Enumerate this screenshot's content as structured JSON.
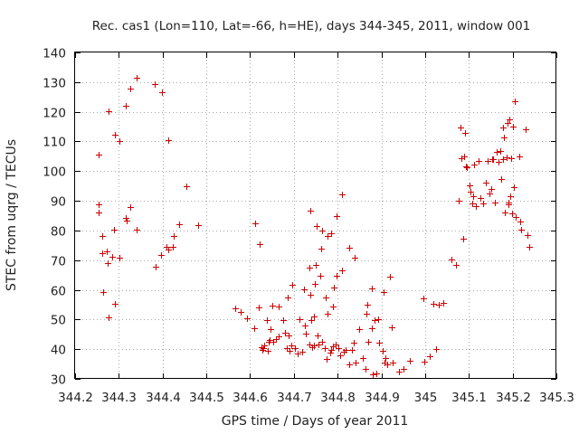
{
  "chart_data": {
    "type": "scatter",
    "title": "Rec. cas1 (Lon=110, Lat=-66, h=HE), days 344-345, 2011, window 001",
    "xlabel": "GPS time / Days of year 2011",
    "ylabel": "STEC from uqrg / TECUs",
    "xlim": [
      344.2,
      345.3
    ],
    "ylim": [
      30,
      140
    ],
    "grid": true,
    "legend": "none",
    "marker": "plus",
    "marker_color": "#cc0000",
    "x_ticks": [
      344.2,
      344.3,
      344.4,
      344.5,
      344.6,
      344.7,
      344.8,
      344.9,
      345.0,
      345.1,
      345.2,
      345.3
    ],
    "x_tick_labels": [
      "344.2",
      "344.3",
      "344.4",
      "344.5",
      "344.6",
      "344.7",
      "344.8",
      "344.9",
      "345",
      "345.1",
      "345.2",
      "345.3"
    ],
    "y_ticks": [
      30,
      40,
      50,
      60,
      70,
      80,
      90,
      100,
      110,
      120,
      130,
      140
    ],
    "y_tick_labels": [
      "30",
      "40",
      "50",
      "60",
      "70",
      "80",
      "90",
      "100",
      "110",
      "120",
      "130",
      "140"
    ],
    "series": [
      {
        "points": [
          [
            344.253,
            105.7
          ],
          [
            344.253,
            88.7
          ],
          [
            344.253,
            86.0
          ],
          [
            344.262,
            78.2
          ],
          [
            344.262,
            72.4
          ],
          [
            344.264,
            59.3
          ],
          [
            344.273,
            72.9
          ],
          [
            344.275,
            69.0
          ],
          [
            344.276,
            120.3
          ],
          [
            344.276,
            50.7
          ],
          [
            344.285,
            71.2
          ],
          [
            344.289,
            80.3
          ],
          [
            344.291,
            112.3
          ],
          [
            344.291,
            55.2
          ],
          [
            344.302,
            110.0
          ],
          [
            344.302,
            70.7
          ],
          [
            344.315,
            121.9
          ],
          [
            344.315,
            84.2
          ],
          [
            344.317,
            83.4
          ],
          [
            344.326,
            127.9
          ],
          [
            344.327,
            88.0
          ],
          [
            344.34,
            131.5
          ],
          [
            344.34,
            80.4
          ],
          [
            344.382,
            129.4
          ],
          [
            344.384,
            67.7
          ],
          [
            344.396,
            71.6
          ],
          [
            344.398,
            126.7
          ],
          [
            344.408,
            74.5
          ],
          [
            344.412,
            110.5
          ],
          [
            344.413,
            73.5
          ],
          [
            344.424,
            74.4
          ],
          [
            344.426,
            78.0
          ],
          [
            344.437,
            82.2
          ],
          [
            344.455,
            94.8
          ],
          [
            344.482,
            81.8
          ],
          [
            344.566,
            53.8
          ],
          [
            344.579,
            52.4
          ],
          [
            344.593,
            50.3
          ],
          [
            344.609,
            47.2
          ],
          [
            344.611,
            82.4
          ],
          [
            344.619,
            54.1
          ],
          [
            344.621,
            75.3
          ],
          [
            344.625,
            40.7
          ],
          [
            344.628,
            39.7
          ],
          [
            344.63,
            40.3
          ],
          [
            344.632,
            41.3
          ],
          [
            344.638,
            49.8
          ],
          [
            344.641,
            39.5
          ],
          [
            344.642,
            42.5
          ],
          [
            344.645,
            43.0
          ],
          [
            344.647,
            46.9
          ],
          [
            344.65,
            54.8
          ],
          [
            344.652,
            42.6
          ],
          [
            344.66,
            43.5
          ],
          [
            344.665,
            54.3
          ],
          [
            344.666,
            44.3
          ],
          [
            344.675,
            49.7
          ],
          [
            344.679,
            45.5
          ],
          [
            344.684,
            40.5
          ],
          [
            344.685,
            57.5
          ],
          [
            344.689,
            44.5
          ],
          [
            344.691,
            39.5
          ],
          [
            344.695,
            41.3
          ],
          [
            344.697,
            61.8
          ],
          [
            344.702,
            40.3
          ],
          [
            344.708,
            38.5
          ],
          [
            344.712,
            50.1
          ],
          [
            344.719,
            39.0
          ],
          [
            344.723,
            60.3
          ],
          [
            344.726,
            47.9
          ],
          [
            344.727,
            45.2
          ],
          [
            344.735,
            41.5
          ],
          [
            344.735,
            67.5
          ],
          [
            344.737,
            58.2
          ],
          [
            344.738,
            86.7
          ],
          [
            344.739,
            49.8
          ],
          [
            344.742,
            40.6
          ],
          [
            344.745,
            51.1
          ],
          [
            344.746,
            41.2
          ],
          [
            344.747,
            62.0
          ],
          [
            344.75,
            68.4
          ],
          [
            344.753,
            81.5
          ],
          [
            344.755,
            44.6
          ],
          [
            344.757,
            41.6
          ],
          [
            344.76,
            64.8
          ],
          [
            344.762,
            73.9
          ],
          [
            344.764,
            42.6
          ],
          [
            344.765,
            79.9
          ],
          [
            344.771,
            40.4
          ],
          [
            344.772,
            57.3
          ],
          [
            344.774,
            36.7
          ],
          [
            344.776,
            78.2
          ],
          [
            344.777,
            52.0
          ],
          [
            344.783,
            38.9
          ],
          [
            344.785,
            39.6
          ],
          [
            344.786,
            79.1
          ],
          [
            344.789,
            54.3
          ],
          [
            344.79,
            40.9
          ],
          [
            344.792,
            60.8
          ],
          [
            344.795,
            41.5
          ],
          [
            344.797,
            85.0
          ],
          [
            344.798,
            64.8
          ],
          [
            344.801,
            40.5
          ],
          [
            344.805,
            38.0
          ],
          [
            344.809,
            92.3
          ],
          [
            344.81,
            66.5
          ],
          [
            344.814,
            39.2
          ],
          [
            344.819,
            39.6
          ],
          [
            344.826,
            74.3
          ],
          [
            344.827,
            34.9
          ],
          [
            344.832,
            39.8
          ],
          [
            344.836,
            42.1
          ],
          [
            344.838,
            70.8
          ],
          [
            344.84,
            35.4
          ],
          [
            344.849,
            46.8
          ],
          [
            344.857,
            37.0
          ],
          [
            344.863,
            33.5
          ],
          [
            344.866,
            51.8
          ],
          [
            344.868,
            55.1
          ],
          [
            344.87,
            42.6
          ],
          [
            344.878,
            47.1
          ],
          [
            344.879,
            60.4
          ],
          [
            344.88,
            31.6
          ],
          [
            344.885,
            49.8
          ],
          [
            344.889,
            31.9
          ],
          [
            344.892,
            50.0
          ],
          [
            344.894,
            42.2
          ],
          [
            344.902,
            39.4
          ],
          [
            344.905,
            59.2
          ],
          [
            344.907,
            35.6
          ],
          [
            344.91,
            36.9
          ],
          [
            344.914,
            34.9
          ],
          [
            344.92,
            64.3
          ],
          [
            344.923,
            47.3
          ],
          [
            344.925,
            35.4
          ],
          [
            344.94,
            32.3
          ],
          [
            344.95,
            33.5
          ],
          [
            344.966,
            36.2
          ],
          [
            344.997,
            57.2
          ],
          [
            344.998,
            35.8
          ],
          [
            345.01,
            37.6
          ],
          [
            345.018,
            55.2
          ],
          [
            345.025,
            40.1
          ],
          [
            345.032,
            55.1
          ],
          [
            345.041,
            55.5
          ],
          [
            345.06,
            70.2
          ],
          [
            345.07,
            68.4
          ],
          [
            345.077,
            90.0
          ],
          [
            345.081,
            114.7
          ],
          [
            345.082,
            104.2
          ],
          [
            345.088,
            77.2
          ],
          [
            345.09,
            105.0
          ],
          [
            345.091,
            112.9
          ],
          [
            345.093,
            101.6
          ],
          [
            345.096,
            101.2
          ],
          [
            345.101,
            95.2
          ],
          [
            345.104,
            93.1
          ],
          [
            345.108,
            89.2
          ],
          [
            345.109,
            91.6
          ],
          [
            345.111,
            102.1
          ],
          [
            345.117,
            88.2
          ],
          [
            345.122,
            103.3
          ],
          [
            345.127,
            91.0
          ],
          [
            345.133,
            89.0
          ],
          [
            345.139,
            96.1
          ],
          [
            345.142,
            103.5
          ],
          [
            345.148,
            92.4
          ],
          [
            345.151,
            94.0
          ],
          [
            345.154,
            103.9
          ],
          [
            345.156,
            104.0
          ],
          [
            345.16,
            89.4
          ],
          [
            345.164,
            106.6
          ],
          [
            345.167,
            103.1
          ],
          [
            345.171,
            106.9
          ],
          [
            345.174,
            97.3
          ],
          [
            345.177,
            114.7
          ],
          [
            345.178,
            104.0
          ],
          [
            345.18,
            111.4
          ],
          [
            345.182,
            86.2
          ],
          [
            345.186,
            104.6
          ],
          [
            345.189,
            116.2
          ],
          [
            345.19,
            89.3
          ],
          [
            345.191,
            88.8
          ],
          [
            345.193,
            117.4
          ],
          [
            345.194,
            91.6
          ],
          [
            345.197,
            104.5
          ],
          [
            345.199,
            85.7
          ],
          [
            345.201,
            115.1
          ],
          [
            345.203,
            94.5
          ],
          [
            345.205,
            123.4
          ],
          [
            345.207,
            84.5
          ],
          [
            345.215,
            105.1
          ],
          [
            345.218,
            83.0
          ],
          [
            345.219,
            80.4
          ],
          [
            345.229,
            114.2
          ],
          [
            345.233,
            78.3
          ],
          [
            345.237,
            74.6
          ]
        ]
      }
    ]
  }
}
